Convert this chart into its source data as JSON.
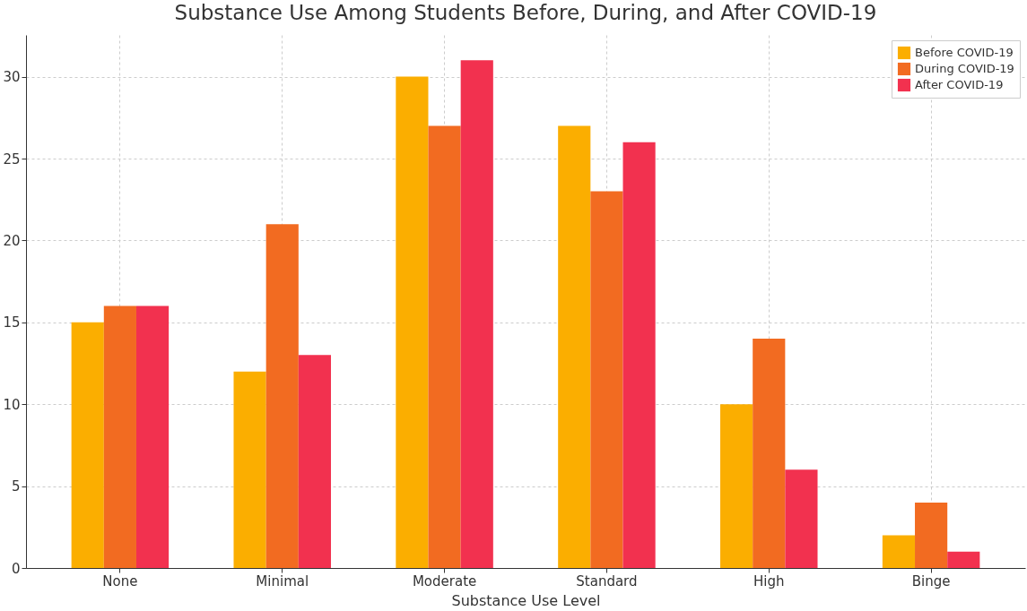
{
  "chart_data": {
    "type": "bar",
    "title": "Substance Use Among Students Before, During, and After COVID-19",
    "xlabel": "Substance Use Level",
    "categories": [
      "None",
      "Minimal",
      "Moderate",
      "Standard",
      "High",
      "Binge"
    ],
    "series": [
      {
        "name": "Before COVID-19",
        "color": "#fbae00",
        "values": [
          15,
          12,
          30,
          27,
          10,
          2
        ]
      },
      {
        "name": "During COVID-19",
        "color": "#f26b21",
        "values": [
          16,
          21,
          27,
          23,
          14,
          4
        ]
      },
      {
        "name": "After COVID-19",
        "color": "#f2314f",
        "values": [
          16,
          13,
          31,
          26,
          6,
          1
        ]
      }
    ],
    "ylim": [
      0,
      32.55
    ],
    "yticks": [
      0,
      5,
      10,
      15,
      20,
      25,
      30
    ],
    "grid": true,
    "legend": "top right"
  }
}
